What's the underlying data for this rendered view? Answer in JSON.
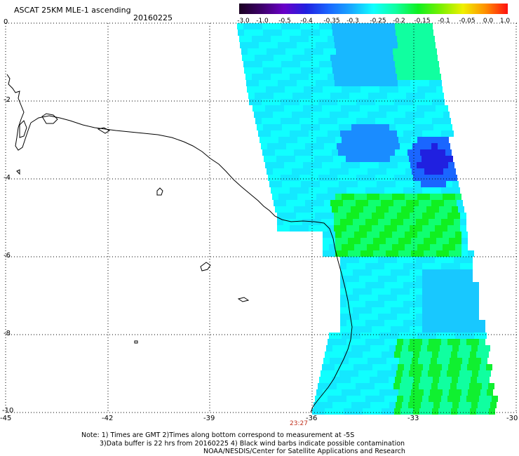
{
  "header": {
    "title": "ASCAT 25KM MLE-1 ascending",
    "date": "20160225"
  },
  "colorbar": {
    "labels": [
      "-3.0",
      "-1.0",
      "-0.5",
      "-0.4",
      "-0.35",
      "-0.3",
      "-0.25",
      "-0.2",
      "-0.15",
      "-0.1",
      "-0.05",
      "0.0",
      "1.0"
    ],
    "colors": [
      "#1a0020",
      "#3d006a",
      "#6a00c8",
      "#2020e0",
      "#1a66ff",
      "#18a8ff",
      "#10ffff",
      "#10ffa0",
      "#10f020",
      "#7af000",
      "#f0f000",
      "#ff9000",
      "#ff1010"
    ]
  },
  "axes": {
    "lat_labels": [
      "0",
      "-2",
      "-4",
      "-6",
      "-8",
      "-10"
    ],
    "lon_labels": [
      "-45",
      "-42",
      "-39",
      "-36",
      "-33",
      "-30"
    ]
  },
  "pass_time": "23:27",
  "notes": {
    "line1": "Note: 1) Times are GMT 2)Times along bottom correspond to measurement at -5S",
    "line2": "3)Data buffer is 22 hrs from 20160225 4) Black wind barbs indicate possible contamination",
    "line3": "NOAA/NESDIS/Center for Satellite Applications and Research"
  }
}
